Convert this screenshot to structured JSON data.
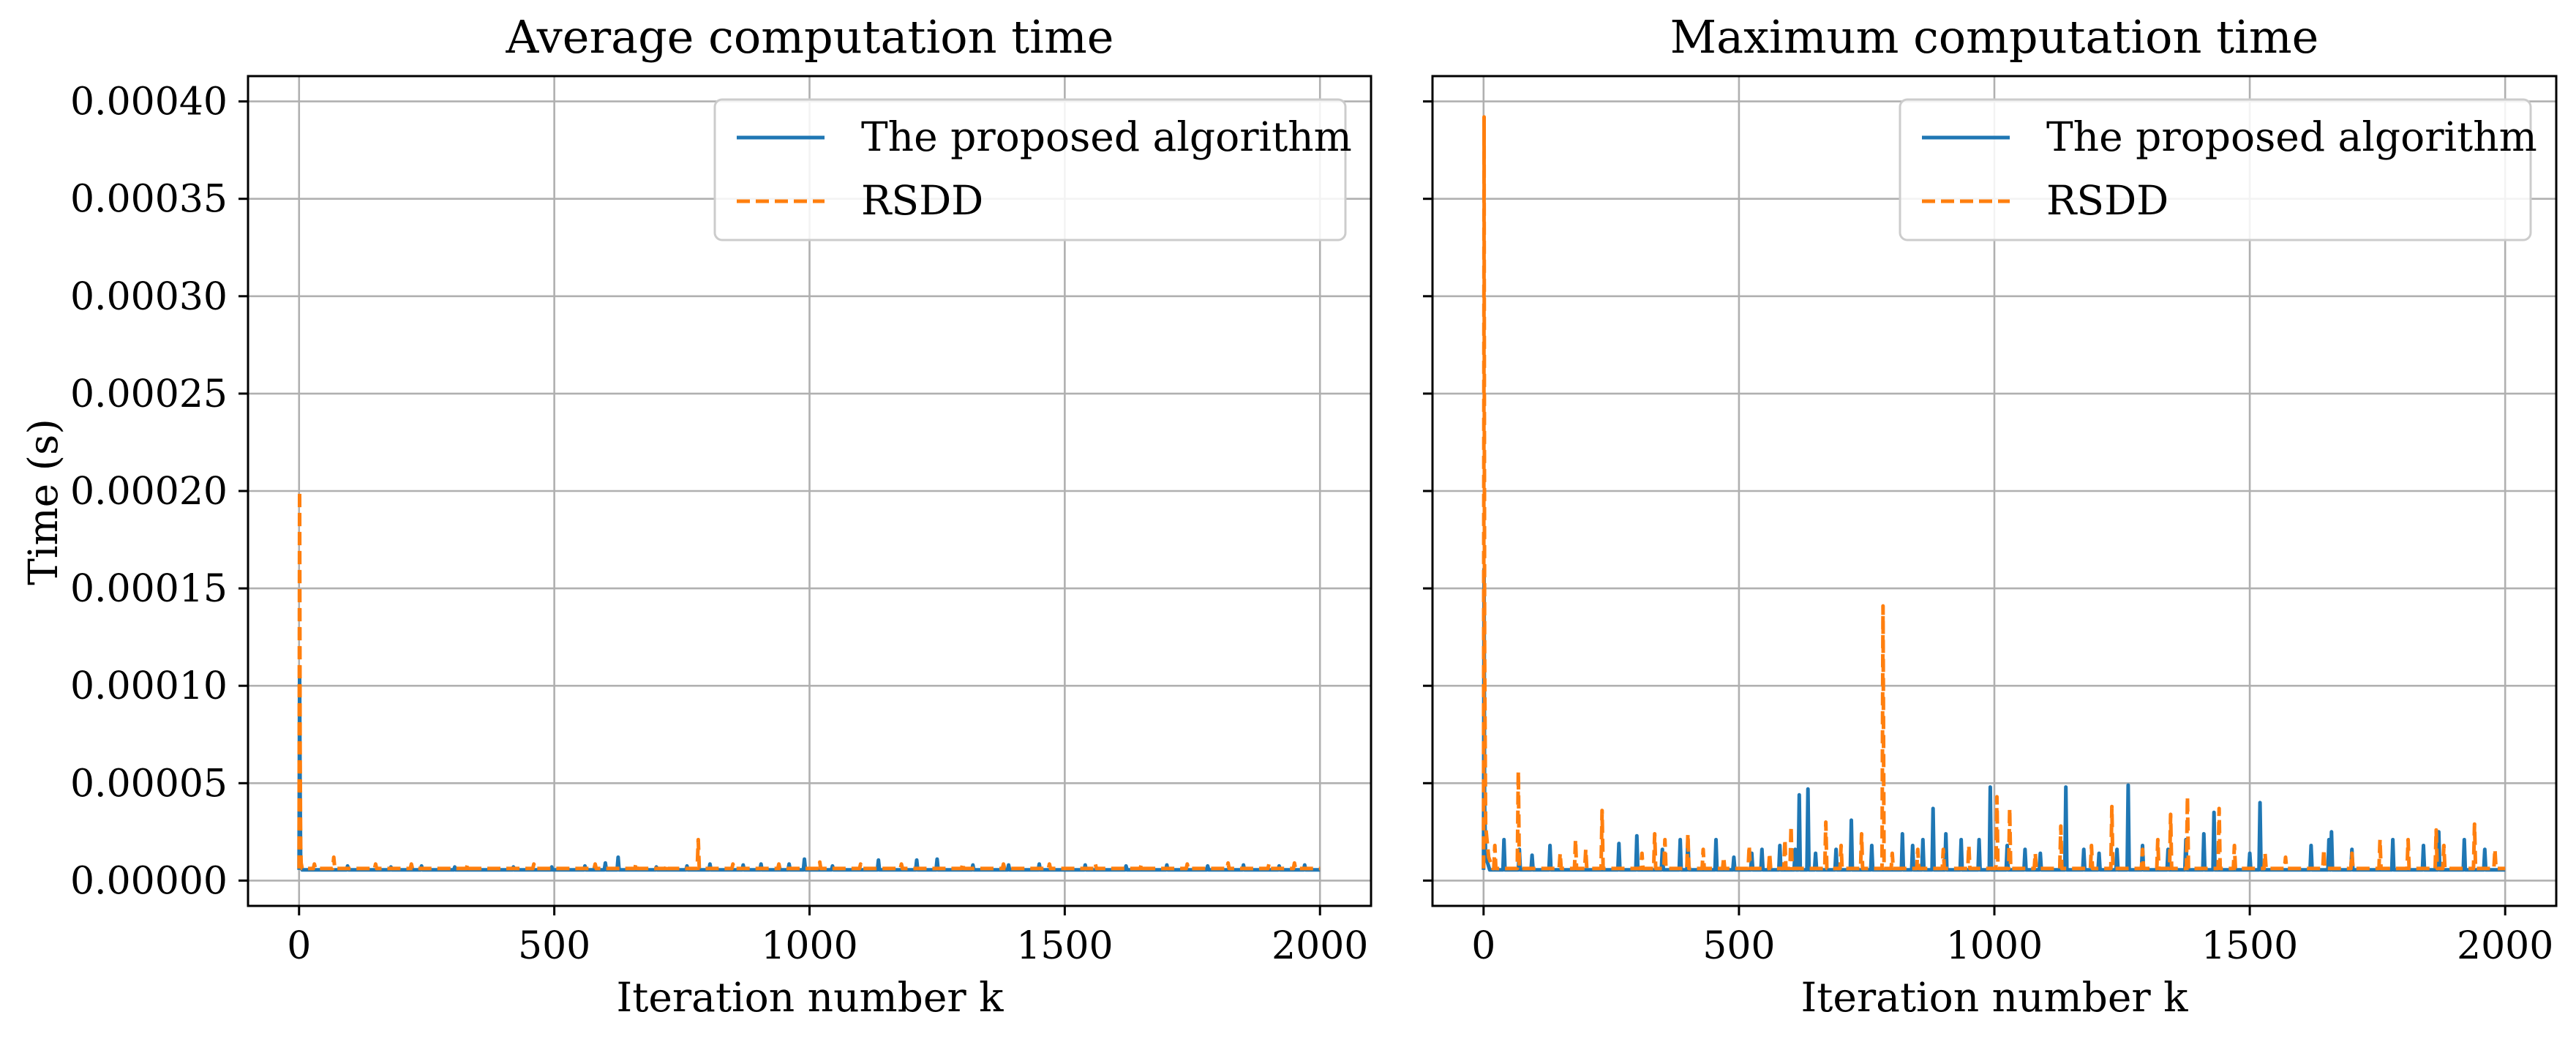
{
  "chart_data": [
    {
      "type": "line",
      "title": "Average computation time",
      "xlabel": "Iteration number k",
      "ylabel": "Time (s)",
      "xlim": [
        -100,
        2100
      ],
      "ylim": [
        -1.3e-05,
        0.000413
      ],
      "xticks": [
        0,
        500,
        1000,
        1500,
        2000
      ],
      "yticks": [
        0.0,
        5e-05,
        0.0001,
        0.00015,
        0.0002,
        0.00025,
        0.0003,
        0.00035,
        0.0004
      ],
      "yticklabels": [
        "0.00000",
        "0.00005",
        "0.00010",
        "0.00015",
        "0.00020",
        "0.00025",
        "0.00030",
        "0.00035",
        "0.00040"
      ],
      "grid": true,
      "legend_position": "top-right",
      "series": [
        {
          "name": "The proposed algorithm",
          "color": "#1f77b4",
          "style": "solid",
          "baseline": 5.5e-06,
          "points": [
            [
              0,
              5.5e-06
            ],
            [
              1,
              0.000105
            ],
            [
              2,
              4.5e-05
            ],
            [
              3,
              1.2e-05
            ],
            [
              4,
              7e-06
            ],
            [
              6,
              5.5e-06
            ]
          ],
          "spikes": [
            [
              95,
              7.5e-06
            ],
            [
              180,
              7e-06
            ],
            [
              240,
              7.5e-06
            ],
            [
              305,
              7e-06
            ],
            [
              420,
              7e-06
            ],
            [
              495,
              7e-06
            ],
            [
              560,
              7.5e-06
            ],
            [
              600,
              9e-06
            ],
            [
              625,
              1.2e-05
            ],
            [
              700,
              7e-06
            ],
            [
              760,
              7.5e-06
            ],
            [
              805,
              8.5e-06
            ],
            [
              870,
              8e-06
            ],
            [
              905,
              8.5e-06
            ],
            [
              960,
              8.5e-06
            ],
            [
              990,
              1.1e-05
            ],
            [
              1045,
              7.5e-06
            ],
            [
              1135,
              1.05e-05
            ],
            [
              1210,
              1.05e-05
            ],
            [
              1250,
              1.1e-05
            ],
            [
              1320,
              8e-06
            ],
            [
              1390,
              8e-06
            ],
            [
              1450,
              8.5e-06
            ],
            [
              1540,
              8e-06
            ],
            [
              1620,
              7.5e-06
            ],
            [
              1700,
              8e-06
            ],
            [
              1780,
              7.5e-06
            ],
            [
              1850,
              8e-06
            ],
            [
              1920,
              7.5e-06
            ],
            [
              1970,
              8e-06
            ]
          ]
        },
        {
          "name": "RSDD",
          "color": "#ff7f0e",
          "style": "dashed",
          "baseline": 6.2e-06,
          "points": [
            [
              0,
              6.2e-06
            ],
            [
              1,
              0.0002
            ],
            [
              2,
              7e-05
            ],
            [
              3,
              1.8e-05
            ],
            [
              4,
              9e-06
            ],
            [
              6,
              6.2e-06
            ]
          ],
          "spikes": [
            [
              30,
              8.5e-06
            ],
            [
              68,
              1.2e-05
            ],
            [
              150,
              8.5e-06
            ],
            [
              220,
              8.5e-06
            ],
            [
              330,
              8.5e-06
            ],
            [
              460,
              8.5e-06
            ],
            [
              580,
              8.5e-06
            ],
            [
              660,
              9e-06
            ],
            [
              720,
              8.5e-06
            ],
            [
              782,
              2.1e-05
            ],
            [
              850,
              8.5e-06
            ],
            [
              940,
              8.5e-06
            ],
            [
              1020,
              9.5e-06
            ],
            [
              1100,
              8.5e-06
            ],
            [
              1180,
              8.5e-06
            ],
            [
              1300,
              9e-06
            ],
            [
              1380,
              8.5e-06
            ],
            [
              1470,
              8.5e-06
            ],
            [
              1560,
              8.5e-06
            ],
            [
              1650,
              8.5e-06
            ],
            [
              1740,
              8.5e-06
            ],
            [
              1820,
              9e-06
            ],
            [
              1900,
              8.5e-06
            ],
            [
              1950,
              9e-06
            ]
          ]
        }
      ]
    },
    {
      "type": "line",
      "title": "Maximum computation time",
      "xlabel": "Iteration number k",
      "xlim": [
        -100,
        2100
      ],
      "ylim": [
        -1.3e-05,
        0.000413
      ],
      "xticks": [
        0,
        500,
        1000,
        1500,
        2000
      ],
      "grid": true,
      "legend_position": "top-right",
      "series": [
        {
          "name": "The proposed algorithm",
          "color": "#1f77b4",
          "style": "solid",
          "baseline": 5.5e-06,
          "points": [
            [
              0,
              5.5e-06
            ],
            [
              1,
              0.00016
            ],
            [
              2,
              4e-05
            ],
            [
              4,
              1.2e-05
            ],
            [
              8,
              9e-06
            ],
            [
              12,
              5.5e-06
            ]
          ],
          "spikes": [
            [
              40,
              2.1e-05
            ],
            [
              70,
              1.6e-05
            ],
            [
              95,
              1.3e-05
            ],
            [
              130,
              1.8e-05
            ],
            [
              265,
              1.9e-05
            ],
            [
              300,
              2.3e-05
            ],
            [
              350,
              1.6e-05
            ],
            [
              385,
              2.1e-05
            ],
            [
              400,
              2.1e-05
            ],
            [
              455,
              2.1e-05
            ],
            [
              490,
              1.2e-05
            ],
            [
              525,
              1.4e-05
            ],
            [
              545,
              1.6e-05
            ],
            [
              580,
              1.8e-05
            ],
            [
              610,
              1.6e-05
            ],
            [
              618,
              4.4e-05
            ],
            [
              635,
              4.7e-05
            ],
            [
              650,
              1.4e-05
            ],
            [
              690,
              1.6e-05
            ],
            [
              720,
              3.1e-05
            ],
            [
              760,
              1.8e-05
            ],
            [
              820,
              2.4e-05
            ],
            [
              840,
              1.8e-05
            ],
            [
              860,
              2.1e-05
            ],
            [
              880,
              3.7e-05
            ],
            [
              905,
              2.4e-05
            ],
            [
              935,
              2.1e-05
            ],
            [
              970,
              2.1e-05
            ],
            [
              992,
              4.8e-05
            ],
            [
              1025,
              1.8e-05
            ],
            [
              1060,
              1.6e-05
            ],
            [
              1090,
              1.4e-05
            ],
            [
              1140,
              4.8e-05
            ],
            [
              1175,
              1.6e-05
            ],
            [
              1205,
              1.4e-05
            ],
            [
              1240,
              1.6e-05
            ],
            [
              1262,
              4.9e-05
            ],
            [
              1290,
              1.8e-05
            ],
            [
              1340,
              1.6e-05
            ],
            [
              1375,
              2.1e-05
            ],
            [
              1410,
              2.4e-05
            ],
            [
              1430,
              3.5e-05
            ],
            [
              1500,
              1.4e-05
            ],
            [
              1520,
              4e-05
            ],
            [
              1620,
              1.8e-05
            ],
            [
              1655,
              2.1e-05
            ],
            [
              1660,
              2.5e-05
            ],
            [
              1700,
              1.6e-05
            ],
            [
              1780,
              2.1e-05
            ],
            [
              1840,
              1.8e-05
            ],
            [
              1870,
              2.5e-05
            ],
            [
              1920,
              2.1e-05
            ],
            [
              1960,
              1.6e-05
            ]
          ]
        },
        {
          "name": "RSDD",
          "color": "#ff7f0e",
          "style": "dashed",
          "baseline": 6.2e-06,
          "points": [
            [
              0,
              6.2e-06
            ],
            [
              1,
              0.000392
            ],
            [
              2,
              0.00012
            ],
            [
              4,
              2.8e-05
            ],
            [
              10,
              1.2e-05
            ],
            [
              18,
              6.2e-06
            ]
          ],
          "spikes": [
            [
              22,
              1.8e-05
            ],
            [
              68,
              5.6e-05
            ],
            [
              150,
              1.4e-05
            ],
            [
              180,
              2.1e-05
            ],
            [
              200,
              1.6e-05
            ],
            [
              232,
              3.6e-05
            ],
            [
              310,
              1.4e-05
            ],
            [
              335,
              2.4e-05
            ],
            [
              355,
              2.1e-05
            ],
            [
              400,
              2.4e-05
            ],
            [
              430,
              1.6e-05
            ],
            [
              470,
              1.2e-05
            ],
            [
              520,
              1.8e-05
            ],
            [
              560,
              1.4e-05
            ],
            [
              590,
              2.1e-05
            ],
            [
              602,
              2.8e-05
            ],
            [
              670,
              3e-05
            ],
            [
              700,
              1.8e-05
            ],
            [
              740,
              2.4e-05
            ],
            [
              782,
              0.000141
            ],
            [
              800,
              1.4e-05
            ],
            [
              850,
              1.6e-05
            ],
            [
              900,
              1.6e-05
            ],
            [
              950,
              1.8e-05
            ],
            [
              1005,
              4.3e-05
            ],
            [
              1030,
              3.7e-05
            ],
            [
              1080,
              1.4e-05
            ],
            [
              1130,
              2.8e-05
            ],
            [
              1190,
              1.8e-05
            ],
            [
              1230,
              3.8e-05
            ],
            [
              1290,
              1.6e-05
            ],
            [
              1320,
              2.1e-05
            ],
            [
              1345,
              3.4e-05
            ],
            [
              1378,
              4.3e-05
            ],
            [
              1440,
              3.7e-05
            ],
            [
              1470,
              1.8e-05
            ],
            [
              1530,
              1.4e-05
            ],
            [
              1570,
              1.2e-05
            ],
            [
              1645,
              1.6e-05
            ],
            [
              1700,
              1.4e-05
            ],
            [
              1755,
              2.1e-05
            ],
            [
              1810,
              2.1e-05
            ],
            [
              1865,
              2.6e-05
            ],
            [
              1880,
              1.8e-05
            ],
            [
              1940,
              2.9e-05
            ],
            [
              1980,
              1.6e-05
            ]
          ]
        }
      ]
    }
  ]
}
